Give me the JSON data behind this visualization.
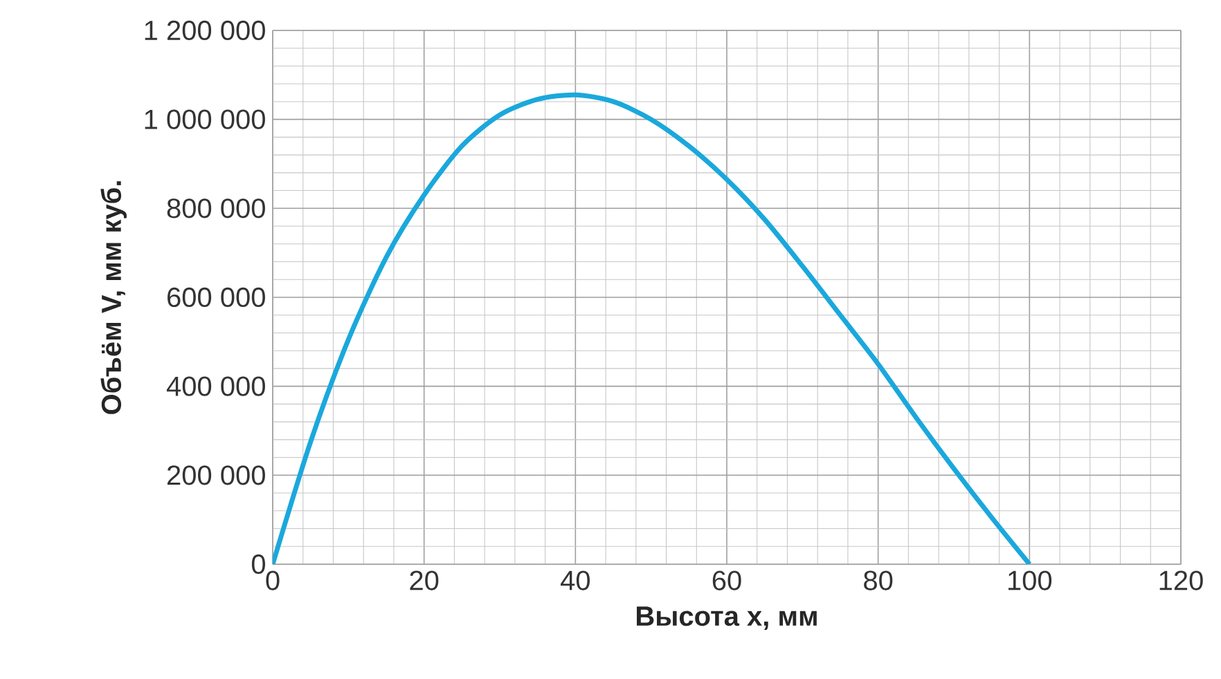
{
  "chart_data": {
    "type": "line",
    "xlabel": "Высота x, мм",
    "ylabel": "Объём V, мм куб.",
    "x": [
      0,
      5,
      10,
      15,
      20,
      25,
      30,
      35,
      40,
      45,
      50,
      55,
      60,
      65,
      70,
      75,
      80,
      85,
      90,
      95,
      100
    ],
    "series": [
      {
        "color": "#1aa8dc",
        "values": [
          0,
          275000,
          505000,
          690000,
          830000,
          940000,
          1010000,
          1045000,
          1055000,
          1040000,
          1000000,
          940000,
          865000,
          775000,
          670000,
          560000,
          450000,
          330000,
          215000,
          105000,
          0
        ]
      }
    ],
    "xlim": [
      0,
      120
    ],
    "xticks": [
      0,
      20,
      40,
      60,
      80,
      100,
      120
    ],
    "ylim": [
      0,
      1200000
    ],
    "yticks": [
      0,
      {
        "value": 200000,
        "label": "200 000"
      },
      {
        "value": 400000,
        "label": "400 000"
      },
      {
        "value": 600000,
        "label": "600 000"
      },
      {
        "value": 800000,
        "label": "800 000"
      },
      {
        "value": 1000000,
        "label": "1 000 000"
      },
      {
        "value": 1200000,
        "label": "1 200 000"
      }
    ],
    "grid": true,
    "marker": "none",
    "line_style": "solid"
  }
}
